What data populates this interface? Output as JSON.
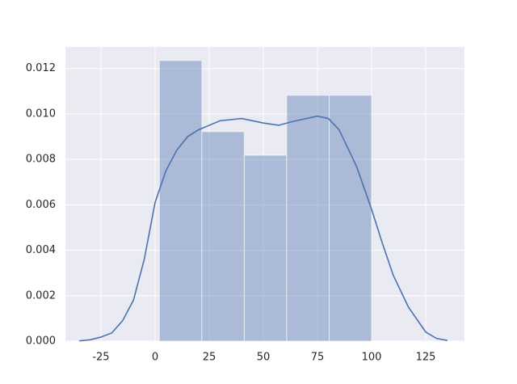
{
  "chart_data": {
    "type": "histogram",
    "bins": [
      2,
      21.6,
      41.2,
      60.8,
      80.4,
      100
    ],
    "counts": [
      0.01235,
      0.00922,
      0.00818,
      0.01082,
      0.01082
    ],
    "color": "#4c72b0",
    "bar_opacity": 0.4,
    "kde": {
      "color": "#4c72b0",
      "x": [
        -35,
        -30,
        -25,
        -20,
        -15,
        -10,
        -5,
        0,
        5,
        10,
        15,
        20,
        30,
        40,
        50,
        57,
        65,
        75,
        80,
        85,
        93,
        100,
        105,
        110,
        117,
        125,
        130,
        135
      ],
      "values": [
        1e-05,
        6e-05,
        0.00018,
        0.00036,
        0.0009,
        0.0018,
        0.0036,
        0.0061,
        0.0075,
        0.0084,
        0.009,
        0.0093,
        0.0097,
        0.0098,
        0.0096,
        0.0095,
        0.0097,
        0.0099,
        0.0098,
        0.0093,
        0.0077,
        0.0058,
        0.0043,
        0.0029,
        0.0015,
        0.0004,
        0.00012,
        3e-05
      ]
    },
    "xlim": [
      -41.4,
      142.9
    ],
    "ylim": [
      0,
      0.01295
    ],
    "xticks": [
      -25,
      0,
      25,
      50,
      75,
      100,
      125
    ],
    "yticks": [
      {
        "value": 0,
        "label": "0.000"
      },
      {
        "value": 0.002,
        "label": "0.002"
      },
      {
        "value": 0.004,
        "label": "0.004"
      },
      {
        "value": 0.006,
        "label": "0.006"
      },
      {
        "value": 0.008,
        "label": "0.008"
      },
      {
        "value": 0.01,
        "label": "0.010"
      },
      {
        "value": 0.012,
        "label": "0.012"
      }
    ],
    "grid": true
  }
}
